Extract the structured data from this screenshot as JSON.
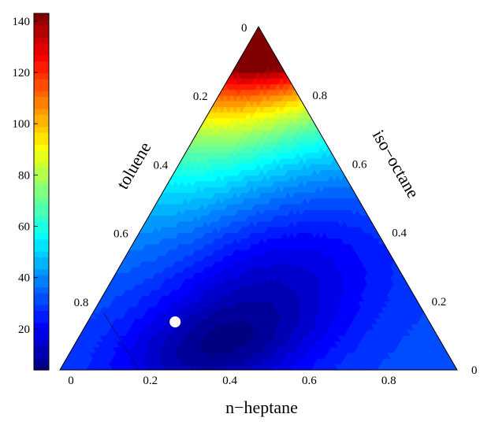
{
  "chart_data": {
    "type": "ternary-contour",
    "axes": {
      "bottom": {
        "label": "n−heptane",
        "ticks": [
          "0",
          "0.2",
          "0.4",
          "0.6",
          "0.8"
        ],
        "values": [
          0,
          0.2,
          0.4,
          0.6,
          0.8
        ]
      },
      "left": {
        "label": "toluene",
        "ticks": [
          "0.2",
          "0.4",
          "0.6",
          "0.8"
        ],
        "values": [
          0.2,
          0.4,
          0.6,
          0.8
        ]
      },
      "right": {
        "label": "iso−octane",
        "ticks": [
          "0",
          "0.2",
          "0.4",
          "0.6",
          "0.8"
        ],
        "values": [
          0,
          0.2,
          0.4,
          0.6,
          0.8
        ]
      },
      "apex_label": "0"
    },
    "colorbar": {
      "range": [
        4,
        143
      ],
      "ticks": [
        "20",
        "40",
        "60",
        "80",
        "100",
        "120",
        "140"
      ],
      "tick_values": [
        20,
        40,
        60,
        80,
        100,
        120,
        140
      ],
      "colormap": "jet",
      "placement": "left"
    },
    "field_description": "Values peak near the toluene-free apex (about 140) and decline toward a broad minimum (about 5) near the lower-left/bottom region.",
    "marker": {
      "n_heptane": 0.22,
      "iso_octane": 0.12,
      "toluene": 0.66,
      "color": "#ffffff"
    }
  }
}
